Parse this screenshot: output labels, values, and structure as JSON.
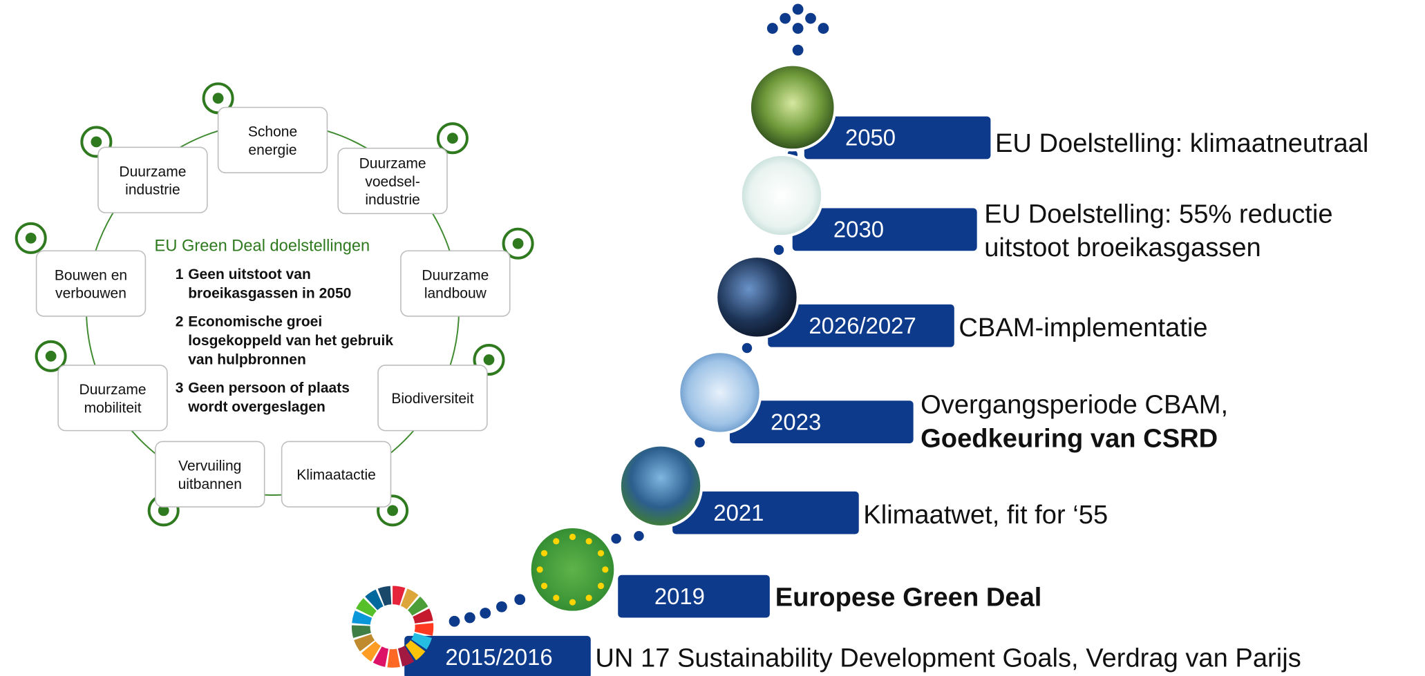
{
  "cycle": {
    "title": "EU Green Deal doelstellingen",
    "nodes": [
      {
        "lines": [
          "Schone",
          "energie"
        ]
      },
      {
        "lines": [
          "Duurzame",
          "voedsel-",
          "industrie"
        ]
      },
      {
        "lines": [
          "Duurzame",
          "landbouw"
        ]
      },
      {
        "lines": [
          "Biodiversiteit"
        ]
      },
      {
        "lines": [
          "Klimaatactie"
        ]
      },
      {
        "lines": [
          "Vervuiling",
          "uitbannen"
        ]
      },
      {
        "lines": [
          "Duurzame",
          "mobiliteit"
        ]
      },
      {
        "lines": [
          "Bouwen en",
          "verbouwen"
        ]
      },
      {
        "lines": [
          "Duurzame",
          "industrie"
        ]
      }
    ],
    "goals": [
      {
        "number": "1",
        "lines": [
          "Geen uitstoot van",
          "broeikasgassen in 2050"
        ]
      },
      {
        "number": "2",
        "lines": [
          "Economische groei",
          "losgekoppeld van het gebruik",
          "van hulpbronnen"
        ]
      },
      {
        "number": "3",
        "lines": [
          "Geen persoon of plaats",
          "wordt overgeslagen"
        ]
      }
    ]
  },
  "timeline": [
    {
      "year": "2050",
      "description": [
        "EU Doelstelling: klimaatneutraal"
      ]
    },
    {
      "year": "2030",
      "description": [
        "EU Doelstelling: 55% reductie",
        "uitstoot broeikasgassen"
      ]
    },
    {
      "year": "2026/2027",
      "description": [
        "CBAM-implementatie"
      ]
    },
    {
      "year": "2023",
      "description": [
        "Overgangsperiode CBAM,",
        "Goedkeuring van CSRD"
      ]
    },
    {
      "year": "2021",
      "description": [
        "Klimaatwet, fit for ‘55"
      ]
    },
    {
      "year": "2019",
      "description": [
        "Europese Green Deal"
      ]
    },
    {
      "year": "2015/2016",
      "description": [
        "UN 17 Sustainability Development Goals, Verdrag van Parijs"
      ]
    }
  ]
}
